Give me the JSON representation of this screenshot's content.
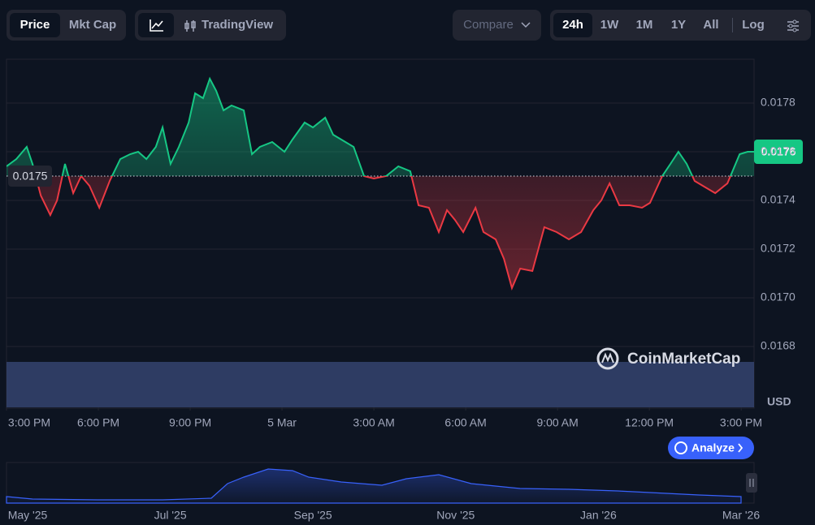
{
  "toolbar": {
    "price": "Price",
    "mkt_cap": "Mkt Cap",
    "trading_view": "TradingView",
    "compare": "Compare",
    "ranges": [
      "24h",
      "1W",
      "1M",
      "1Y",
      "All"
    ],
    "log": "Log"
  },
  "chart_data": {
    "type": "line",
    "x": [
      0,
      0.32,
      0.66,
      0.85,
      1.12,
      1.43,
      1.65,
      1.91,
      2.18,
      2.44,
      2.71,
      3.03,
      3.37,
      3.72,
      4.04,
      4.3,
      4.57,
      4.88,
      5.1,
      5.36,
      5.63,
      5.95,
      6.16,
      6.42,
      6.64,
      6.85,
      7.09,
      7.35,
      7.75,
      8.02,
      8.28,
      8.68,
      9.08,
      9.34,
      9.74,
      10.01,
      10.41,
      10.67,
      11.07,
      11.34,
      11.68,
      12.0,
      12.4,
      12.8,
      13.19,
      13.46,
      13.8,
      14.12,
      14.39,
      14.65,
      14.92,
      15.32,
      15.58,
      15.98,
      16.25,
      16.51,
      16.78,
      17.18,
      17.57,
      17.97,
      18.37,
      18.77,
      19.17,
      19.43,
      19.7,
      20.02,
      20.36,
      20.76,
      21.02,
      21.42,
      21.69,
      21.95,
      22.22,
      22.48,
      22.88,
      23.15,
      23.55,
      23.95,
      24.21,
      24.42
    ],
    "values": [
      0.01754,
      0.01757,
      0.01762,
      0.01755,
      0.01742,
      0.01734,
      0.0174,
      0.01755,
      0.01743,
      0.0175,
      0.01746,
      0.01737,
      0.01748,
      0.01757,
      0.01759,
      0.0176,
      0.01757,
      0.01762,
      0.0177,
      0.01755,
      0.01762,
      0.01772,
      0.01784,
      0.01782,
      0.0179,
      0.01785,
      0.01777,
      0.01779,
      0.01777,
      0.01759,
      0.01762,
      0.01764,
      0.0176,
      0.01765,
      0.01772,
      0.0177,
      0.01774,
      0.01767,
      0.01764,
      0.01762,
      0.0175,
      0.01749,
      0.0175,
      0.01754,
      0.01752,
      0.01738,
      0.01737,
      0.01727,
      0.01736,
      0.01732,
      0.01727,
      0.01737,
      0.01727,
      0.01724,
      0.01716,
      0.01704,
      0.01712,
      0.01711,
      0.01729,
      0.01727,
      0.01724,
      0.01727,
      0.01736,
      0.0174,
      0.01747,
      0.01738,
      0.01738,
      0.01737,
      0.01739,
      0.0175,
      0.01755,
      0.0176,
      0.01755,
      0.01748,
      0.01745,
      0.01743,
      0.01747,
      0.01759,
      0.0176,
      0.0176
    ],
    "baseline": 0.0175,
    "last": 0.0176,
    "up_color": "#16c784",
    "down_color": "#ea3943",
    "xlim": [
      0,
      24.42
    ],
    "xticks": [
      {
        "value": 0,
        "label": "3:00 PM"
      },
      {
        "value": 3,
        "label": "6:00 PM"
      },
      {
        "value": 6,
        "label": "9:00 PM"
      },
      {
        "value": 9,
        "label": "5 Mar"
      },
      {
        "value": 12,
        "label": "3:00 AM"
      },
      {
        "value": 15,
        "label": "6:00 AM"
      },
      {
        "value": 18,
        "label": "9:00 AM"
      },
      {
        "value": 21,
        "label": "12:00 PM"
      },
      {
        "value": 24,
        "label": "3:00 PM"
      }
    ],
    "ylim": [
      0.01655,
      0.01798
    ],
    "yticks": [
      0.0168,
      {
        "value": 0.017,
        "label": "0.0170"
      },
      0.0172,
      0.0174,
      0.0176,
      0.0178
    ],
    "grid": true,
    "currency": "USD"
  },
  "watermark": "CoinMarketCap",
  "analyze": "Analyze",
  "navigator": {
    "labels": [
      "May '25",
      "Jul '25",
      "Sep '25",
      "Nov '25",
      "Jan '26",
      "Mar '26"
    ]
  }
}
